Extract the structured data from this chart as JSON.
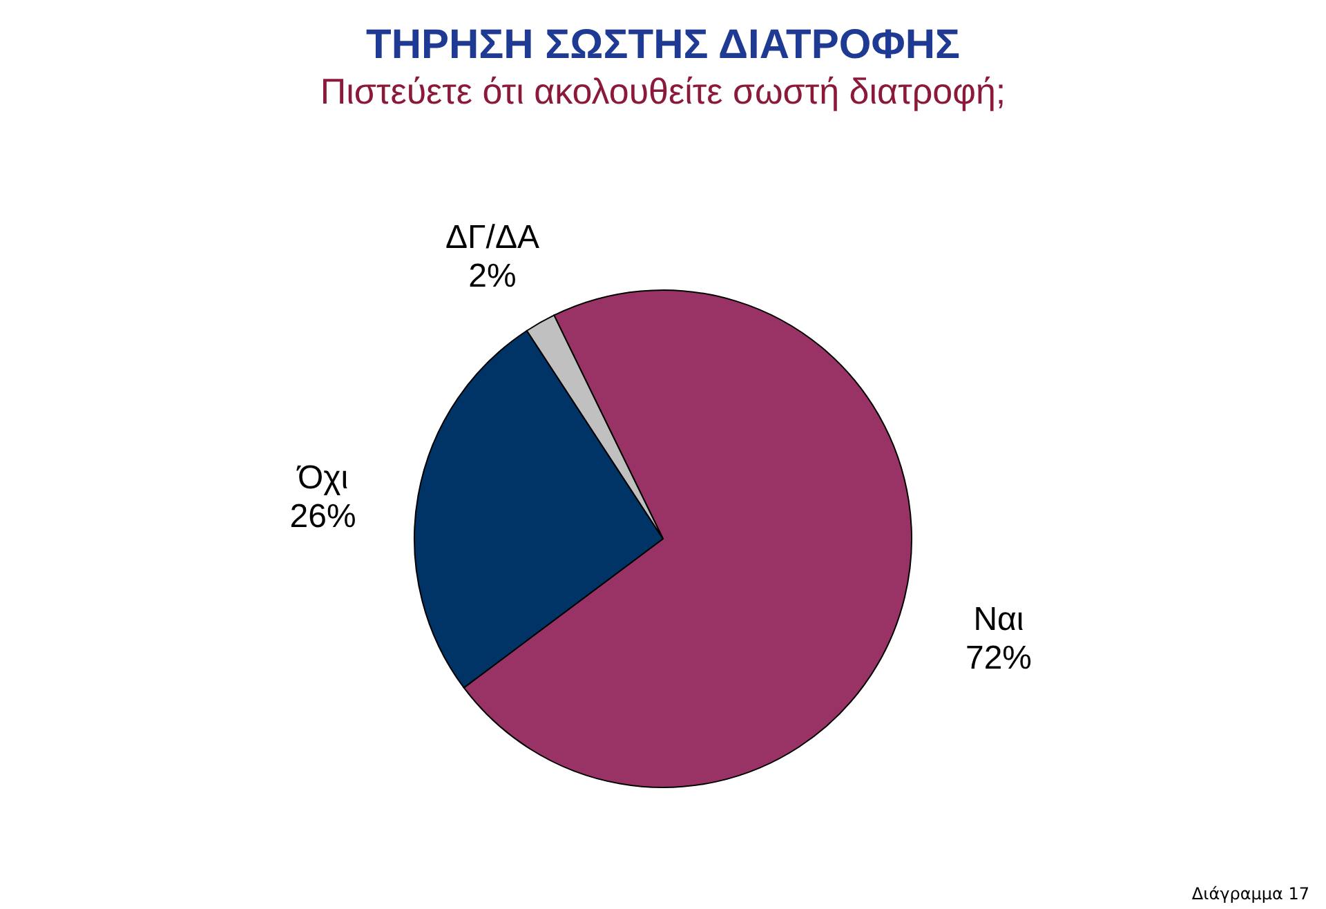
{
  "chart_data": {
    "type": "pie",
    "title": "ΤΗΡΗΣΗ ΣΩΣΤΗΣ ΔΙΑΤΡΟΦΗΣ",
    "subtitle": "Πιστεύετε ότι ακολουθείτε σωστή διατροφή;",
    "categories": [
      "Ναι",
      "Όχι",
      "ΔΓ/ΔΑ"
    ],
    "values": [
      72,
      26,
      2
    ],
    "colors": [
      "#993366",
      "#003366",
      "#c0c0c0"
    ],
    "value_labels": [
      "72%",
      "26%",
      "2%"
    ],
    "legend": false,
    "annotations": [
      "Διάγραμμα 17"
    ]
  }
}
